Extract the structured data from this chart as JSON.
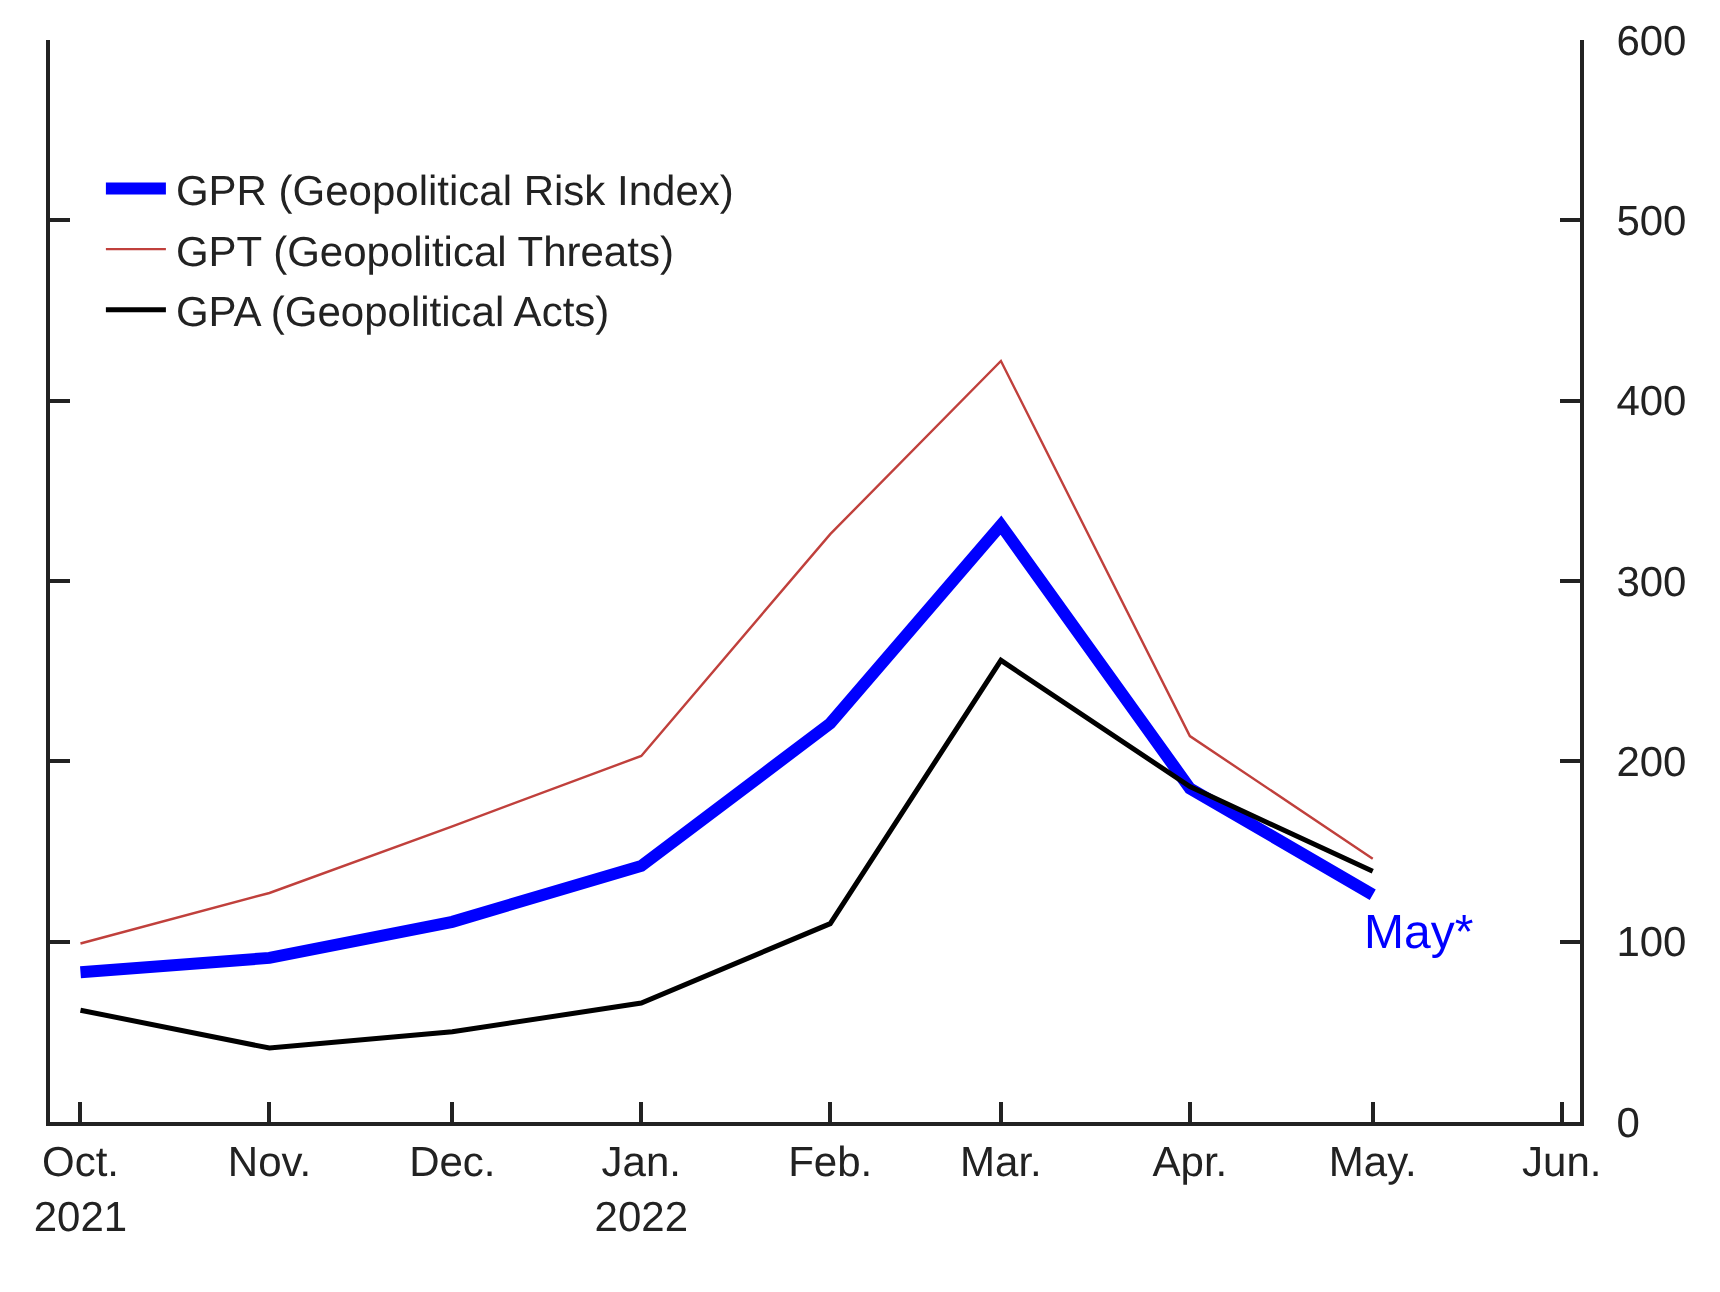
{
  "chart_data": {
    "type": "line",
    "x": [
      "2021-10-01",
      "2021-11-01",
      "2021-12-01",
      "2022-01-01",
      "2022-02-01",
      "2022-03-01",
      "2022-04-01",
      "2022-05-01"
    ],
    "series": [
      {
        "name": "GPR (Geopolitical Risk Index)",
        "color": "#0000ff",
        "values": [
          83,
          91,
          111,
          142,
          221,
          331,
          185,
          126
        ]
      },
      {
        "name": "GPT (Geopolitical Threats)",
        "color": "#c0403c",
        "values": [
          99,
          127,
          164,
          203,
          326,
          422,
          214,
          146
        ]
      },
      {
        "name": "GPA (Geopolitical Acts)",
        "color": "#000000",
        "values": [
          62,
          41,
          50,
          66,
          110,
          256,
          186,
          139
        ]
      }
    ],
    "xlim": [
      "2021-09-26",
      "2022-06-04"
    ],
    "xticks": [
      {
        "value": "2021-10-01",
        "label": "Oct.\n2021"
      },
      {
        "value": "2021-11-01",
        "label": "Nov."
      },
      {
        "value": "2021-12-01",
        "label": "Dec."
      },
      {
        "value": "2022-01-01",
        "label": "Jan.\n2022"
      },
      {
        "value": "2022-02-01",
        "label": "Feb."
      },
      {
        "value": "2022-03-01",
        "label": "Mar."
      },
      {
        "value": "2022-04-01",
        "label": "Apr."
      },
      {
        "value": "2022-05-01",
        "label": "May."
      },
      {
        "value": "2022-06-01",
        "label": "Jun."
      }
    ],
    "ylim": [
      0,
      600
    ],
    "yticks": [
      0,
      100,
      200,
      300,
      400,
      500,
      600
    ],
    "annotations": [
      {
        "text": "May*",
        "x": "2022-05-01",
        "y": 126
      }
    ],
    "legend": "top left",
    "grid": false,
    "line_style": "solid",
    "marker": "none"
  }
}
